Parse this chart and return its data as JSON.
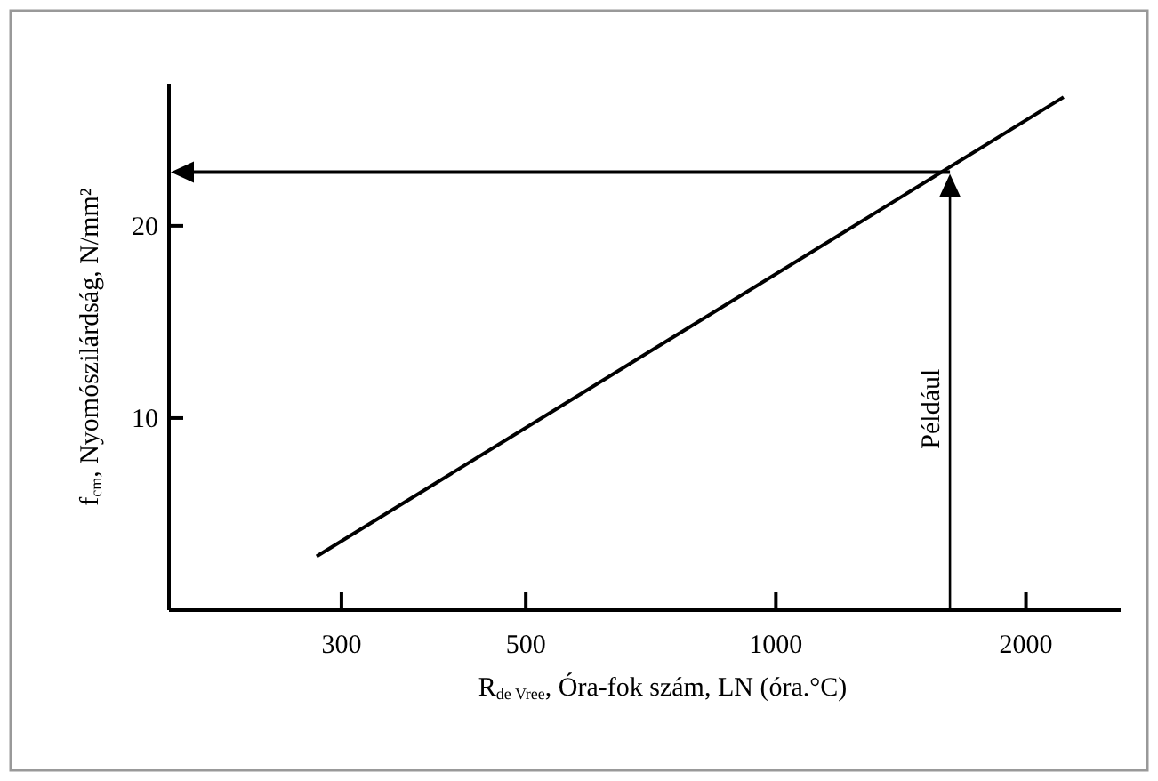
{
  "chart_data": {
    "type": "line",
    "xlabel": "R$_{de Vree}$, Óra-fok szám, LN (óra.°C)",
    "ylabel": "f$_{cm}$, Nyomószilárdság, N/mm²",
    "x": [
      280,
      2220
    ],
    "log": "x",
    "series": [
      {
        "color": "#000000",
        "values": [
          2.8,
          26.7
        ]
      }
    ],
    "xlim": [
      186,
      2600
    ],
    "xticks": [
      300,
      500,
      1000,
      2000
    ],
    "ylim": [
      0,
      27.4
    ],
    "yticks": [
      10,
      20
    ],
    "ref_lines": [
      {
        "axis": "x",
        "value": 1620,
        "label": "Például",
        "color": "#000000"
      },
      {
        "axis": "y",
        "value": 22.8,
        "color": "#000000"
      }
    ],
    "grid": false,
    "marker": "none",
    "line_style": "solid"
  }
}
